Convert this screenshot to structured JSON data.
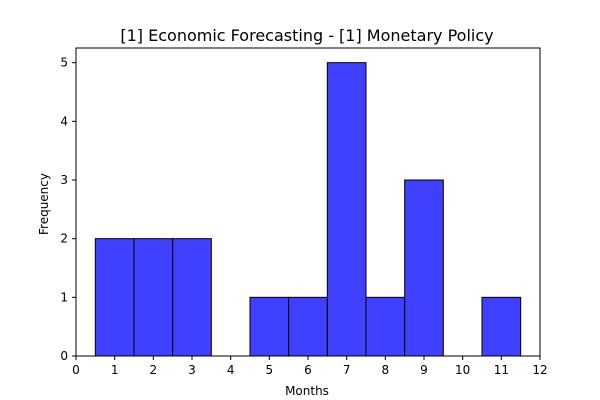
{
  "chart_data": {
    "type": "bar",
    "title": "[1] Economic Forecasting - [1] Monetary Policy",
    "xlabel": "Months",
    "ylabel": "Frequency",
    "xlim": [
      0,
      12
    ],
    "ylim": [
      0,
      5.25
    ],
    "x_ticks": [
      "0",
      "1",
      "2",
      "3",
      "4",
      "5",
      "6",
      "7",
      "8",
      "9",
      "10",
      "11",
      "12"
    ],
    "y_ticks": [
      "0",
      "1",
      "2",
      "3",
      "4",
      "5"
    ],
    "bins": [
      {
        "start": 0.5,
        "end": 1.5,
        "value": 2
      },
      {
        "start": 1.5,
        "end": 2.5,
        "value": 2
      },
      {
        "start": 2.5,
        "end": 3.5,
        "value": 2
      },
      {
        "start": 3.5,
        "end": 4.5,
        "value": 0
      },
      {
        "start": 4.5,
        "end": 5.5,
        "value": 1
      },
      {
        "start": 5.5,
        "end": 6.5,
        "value": 1
      },
      {
        "start": 6.5,
        "end": 7.5,
        "value": 5
      },
      {
        "start": 7.5,
        "end": 8.5,
        "value": 1
      },
      {
        "start": 8.5,
        "end": 9.5,
        "value": 3
      },
      {
        "start": 9.5,
        "end": 10.5,
        "value": 0
      },
      {
        "start": 10.5,
        "end": 11.5,
        "value": 1
      }
    ],
    "bar_color": "#4040ff",
    "bar_edge_color": "#000000",
    "grid": false,
    "legend": "none"
  }
}
